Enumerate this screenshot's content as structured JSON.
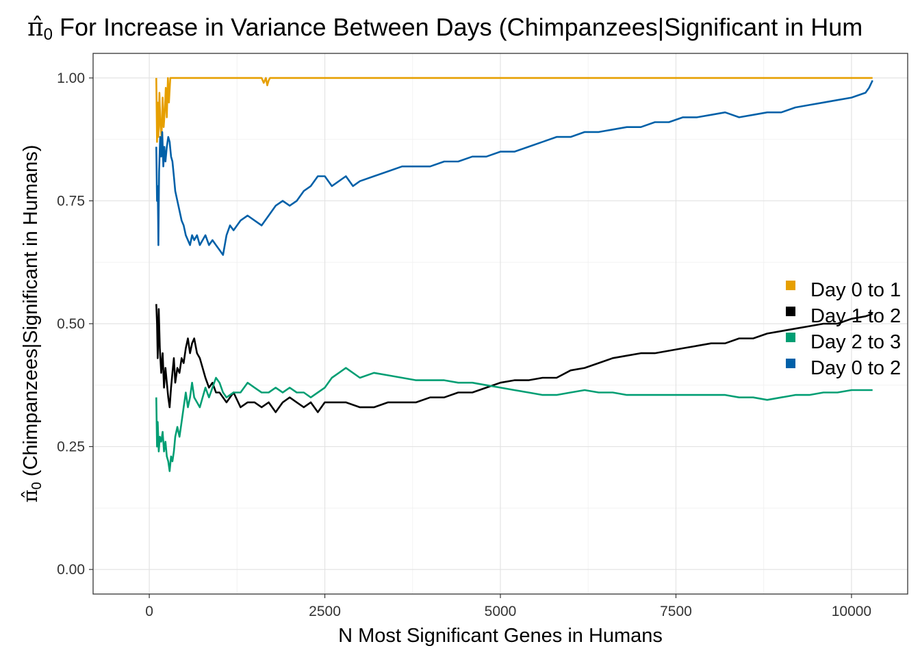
{
  "chart_data": {
    "type": "line",
    "title": "For Increase in Variance Between Days (Chimpanzees|Significant in Hum",
    "title_symbol": "π̂",
    "title_symbol_sub": "0",
    "xlabel": "N Most Significant Genes in Humans",
    "ylabel": "(Chimpanzees|Significant in Humans)",
    "ylabel_symbol": "π̂",
    "ylabel_symbol_sub": "0",
    "xlim": [
      -800,
      10800
    ],
    "ylim": [
      -0.05,
      1.05
    ],
    "x_ticks": [
      0,
      2500,
      5000,
      7500,
      10000
    ],
    "x_tick_labels": [
      "0",
      "2500",
      "5000",
      "7500",
      "10000"
    ],
    "y_ticks": [
      0,
      0.25,
      0.5,
      0.75,
      1.0
    ],
    "y_tick_labels": [
      "0.00",
      "0.25",
      "0.50",
      "0.75",
      "1.00"
    ],
    "grid": true,
    "legend_position": "right",
    "series": [
      {
        "name": "Day 0 to 1",
        "color": "#E69F00",
        "points": [
          [
            100,
            1.0
          ],
          [
            110,
            0.87
          ],
          [
            120,
            0.95
          ],
          [
            130,
            0.88
          ],
          [
            145,
            0.97
          ],
          [
            160,
            0.9
          ],
          [
            175,
            0.88
          ],
          [
            190,
            0.96
          ],
          [
            205,
            0.9
          ],
          [
            220,
            0.93
          ],
          [
            235,
            0.98
          ],
          [
            250,
            0.92
          ],
          [
            265,
            1.0
          ],
          [
            280,
            0.95
          ],
          [
            300,
            1.0
          ],
          [
            400,
            1.0
          ],
          [
            800,
            1.0
          ],
          [
            1200,
            1.0
          ],
          [
            1600,
            1.0
          ],
          [
            1630,
            0.99
          ],
          [
            1660,
            1.0
          ],
          [
            1680,
            0.985
          ],
          [
            1700,
            0.995
          ],
          [
            1720,
            1.0
          ],
          [
            2000,
            1.0
          ],
          [
            3000,
            1.0
          ],
          [
            4000,
            1.0
          ],
          [
            5000,
            1.0
          ],
          [
            6000,
            1.0
          ],
          [
            7000,
            1.0
          ],
          [
            8000,
            1.0
          ],
          [
            9000,
            1.0
          ],
          [
            10000,
            1.0
          ],
          [
            10300,
            1.0
          ]
        ]
      },
      {
        "name": "Day 1 to 2",
        "color": "#000000",
        "points": [
          [
            100,
            0.54
          ],
          [
            110,
            0.5
          ],
          [
            120,
            0.43
          ],
          [
            135,
            0.53
          ],
          [
            150,
            0.45
          ],
          [
            170,
            0.4
          ],
          [
            190,
            0.44
          ],
          [
            210,
            0.37
          ],
          [
            230,
            0.41
          ],
          [
            250,
            0.38
          ],
          [
            270,
            0.35
          ],
          [
            290,
            0.33
          ],
          [
            310,
            0.37
          ],
          [
            330,
            0.4
          ],
          [
            350,
            0.43
          ],
          [
            370,
            0.38
          ],
          [
            400,
            0.41
          ],
          [
            430,
            0.4
          ],
          [
            460,
            0.43
          ],
          [
            490,
            0.42
          ],
          [
            520,
            0.45
          ],
          [
            550,
            0.47
          ],
          [
            580,
            0.44
          ],
          [
            610,
            0.46
          ],
          [
            640,
            0.47
          ],
          [
            680,
            0.44
          ],
          [
            720,
            0.43
          ],
          [
            760,
            0.41
          ],
          [
            800,
            0.39
          ],
          [
            850,
            0.37
          ],
          [
            900,
            0.38
          ],
          [
            950,
            0.36
          ],
          [
            1000,
            0.36
          ],
          [
            1050,
            0.35
          ],
          [
            1100,
            0.34
          ],
          [
            1200,
            0.36
          ],
          [
            1300,
            0.33
          ],
          [
            1400,
            0.34
          ],
          [
            1500,
            0.34
          ],
          [
            1600,
            0.33
          ],
          [
            1700,
            0.34
          ],
          [
            1800,
            0.32
          ],
          [
            1900,
            0.34
          ],
          [
            2000,
            0.35
          ],
          [
            2100,
            0.34
          ],
          [
            2200,
            0.33
          ],
          [
            2300,
            0.34
          ],
          [
            2400,
            0.32
          ],
          [
            2500,
            0.34
          ],
          [
            2600,
            0.34
          ],
          [
            2800,
            0.34
          ],
          [
            3000,
            0.33
          ],
          [
            3200,
            0.33
          ],
          [
            3400,
            0.34
          ],
          [
            3600,
            0.34
          ],
          [
            3800,
            0.34
          ],
          [
            4000,
            0.35
          ],
          [
            4200,
            0.35
          ],
          [
            4400,
            0.36
          ],
          [
            4600,
            0.36
          ],
          [
            4800,
            0.37
          ],
          [
            5000,
            0.38
          ],
          [
            5200,
            0.385
          ],
          [
            5400,
            0.385
          ],
          [
            5600,
            0.39
          ],
          [
            5800,
            0.39
          ],
          [
            6000,
            0.405
          ],
          [
            6200,
            0.41
          ],
          [
            6400,
            0.42
          ],
          [
            6600,
            0.43
          ],
          [
            6800,
            0.435
          ],
          [
            7000,
            0.44
          ],
          [
            7200,
            0.44
          ],
          [
            7400,
            0.445
          ],
          [
            7600,
            0.45
          ],
          [
            7800,
            0.455
          ],
          [
            8000,
            0.46
          ],
          [
            8200,
            0.46
          ],
          [
            8400,
            0.47
          ],
          [
            8600,
            0.47
          ],
          [
            8800,
            0.48
          ],
          [
            9000,
            0.485
          ],
          [
            9200,
            0.49
          ],
          [
            9400,
            0.495
          ],
          [
            9600,
            0.5
          ],
          [
            9800,
            0.5
          ],
          [
            10000,
            0.51
          ],
          [
            10200,
            0.515
          ],
          [
            10300,
            0.52
          ]
        ]
      },
      {
        "name": "Day 2 to 3",
        "color": "#009E73",
        "points": [
          [
            100,
            0.35
          ],
          [
            110,
            0.25
          ],
          [
            120,
            0.3
          ],
          [
            135,
            0.24
          ],
          [
            150,
            0.27
          ],
          [
            170,
            0.26
          ],
          [
            190,
            0.28
          ],
          [
            210,
            0.24
          ],
          [
            230,
            0.26
          ],
          [
            250,
            0.23
          ],
          [
            270,
            0.22
          ],
          [
            290,
            0.2
          ],
          [
            310,
            0.23
          ],
          [
            330,
            0.22
          ],
          [
            350,
            0.24
          ],
          [
            370,
            0.27
          ],
          [
            400,
            0.29
          ],
          [
            430,
            0.27
          ],
          [
            460,
            0.3
          ],
          [
            490,
            0.33
          ],
          [
            520,
            0.36
          ],
          [
            550,
            0.33
          ],
          [
            580,
            0.35
          ],
          [
            610,
            0.38
          ],
          [
            640,
            0.35
          ],
          [
            680,
            0.34
          ],
          [
            720,
            0.33
          ],
          [
            760,
            0.35
          ],
          [
            800,
            0.37
          ],
          [
            850,
            0.35
          ],
          [
            900,
            0.37
          ],
          [
            950,
            0.39
          ],
          [
            1000,
            0.38
          ],
          [
            1050,
            0.36
          ],
          [
            1100,
            0.35
          ],
          [
            1200,
            0.36
          ],
          [
            1300,
            0.36
          ],
          [
            1400,
            0.38
          ],
          [
            1500,
            0.37
          ],
          [
            1600,
            0.36
          ],
          [
            1700,
            0.36
          ],
          [
            1800,
            0.37
          ],
          [
            1900,
            0.36
          ],
          [
            2000,
            0.37
          ],
          [
            2100,
            0.36
          ],
          [
            2200,
            0.36
          ],
          [
            2300,
            0.35
          ],
          [
            2400,
            0.36
          ],
          [
            2500,
            0.37
          ],
          [
            2600,
            0.39
          ],
          [
            2700,
            0.4
          ],
          [
            2800,
            0.41
          ],
          [
            2900,
            0.4
          ],
          [
            3000,
            0.39
          ],
          [
            3200,
            0.4
          ],
          [
            3400,
            0.395
          ],
          [
            3600,
            0.39
          ],
          [
            3800,
            0.385
          ],
          [
            4000,
            0.385
          ],
          [
            4200,
            0.385
          ],
          [
            4400,
            0.38
          ],
          [
            4600,
            0.38
          ],
          [
            4800,
            0.375
          ],
          [
            5000,
            0.37
          ],
          [
            5200,
            0.365
          ],
          [
            5400,
            0.36
          ],
          [
            5600,
            0.355
          ],
          [
            5800,
            0.355
          ],
          [
            6000,
            0.36
          ],
          [
            6200,
            0.365
          ],
          [
            6400,
            0.36
          ],
          [
            6600,
            0.36
          ],
          [
            6800,
            0.355
          ],
          [
            7000,
            0.355
          ],
          [
            7200,
            0.355
          ],
          [
            7400,
            0.355
          ],
          [
            7600,
            0.355
          ],
          [
            7800,
            0.355
          ],
          [
            8000,
            0.355
          ],
          [
            8200,
            0.355
          ],
          [
            8400,
            0.35
          ],
          [
            8600,
            0.35
          ],
          [
            8800,
            0.345
          ],
          [
            9000,
            0.35
          ],
          [
            9200,
            0.355
          ],
          [
            9400,
            0.355
          ],
          [
            9600,
            0.36
          ],
          [
            9800,
            0.36
          ],
          [
            10000,
            0.365
          ],
          [
            10200,
            0.365
          ],
          [
            10300,
            0.365
          ]
        ]
      },
      {
        "name": "Day 0 to 2",
        "color": "#0060A8",
        "points": [
          [
            100,
            0.86
          ],
          [
            110,
            0.75
          ],
          [
            120,
            0.78
          ],
          [
            130,
            0.66
          ],
          [
            140,
            0.81
          ],
          [
            155,
            0.88
          ],
          [
            170,
            0.84
          ],
          [
            185,
            0.89
          ],
          [
            200,
            0.82
          ],
          [
            215,
            0.86
          ],
          [
            230,
            0.83
          ],
          [
            250,
            0.86
          ],
          [
            270,
            0.88
          ],
          [
            290,
            0.87
          ],
          [
            310,
            0.84
          ],
          [
            330,
            0.83
          ],
          [
            350,
            0.8
          ],
          [
            370,
            0.77
          ],
          [
            400,
            0.75
          ],
          [
            430,
            0.73
          ],
          [
            460,
            0.71
          ],
          [
            490,
            0.7
          ],
          [
            520,
            0.68
          ],
          [
            550,
            0.67
          ],
          [
            580,
            0.66
          ],
          [
            610,
            0.68
          ],
          [
            640,
            0.67
          ],
          [
            680,
            0.68
          ],
          [
            720,
            0.66
          ],
          [
            760,
            0.67
          ],
          [
            800,
            0.68
          ],
          [
            850,
            0.66
          ],
          [
            900,
            0.67
          ],
          [
            950,
            0.66
          ],
          [
            1000,
            0.65
          ],
          [
            1050,
            0.64
          ],
          [
            1100,
            0.68
          ],
          [
            1150,
            0.7
          ],
          [
            1200,
            0.69
          ],
          [
            1300,
            0.71
          ],
          [
            1400,
            0.72
          ],
          [
            1500,
            0.71
          ],
          [
            1600,
            0.7
          ],
          [
            1700,
            0.72
          ],
          [
            1800,
            0.74
          ],
          [
            1900,
            0.75
          ],
          [
            2000,
            0.74
          ],
          [
            2100,
            0.75
          ],
          [
            2200,
            0.77
          ],
          [
            2300,
            0.78
          ],
          [
            2400,
            0.8
          ],
          [
            2500,
            0.8
          ],
          [
            2600,
            0.78
          ],
          [
            2700,
            0.79
          ],
          [
            2800,
            0.8
          ],
          [
            2900,
            0.78
          ],
          [
            3000,
            0.79
          ],
          [
            3200,
            0.8
          ],
          [
            3400,
            0.81
          ],
          [
            3600,
            0.82
          ],
          [
            3800,
            0.82
          ],
          [
            4000,
            0.82
          ],
          [
            4200,
            0.83
          ],
          [
            4400,
            0.83
          ],
          [
            4600,
            0.84
          ],
          [
            4800,
            0.84
          ],
          [
            5000,
            0.85
          ],
          [
            5200,
            0.85
          ],
          [
            5400,
            0.86
          ],
          [
            5600,
            0.87
          ],
          [
            5800,
            0.88
          ],
          [
            6000,
            0.88
          ],
          [
            6200,
            0.89
          ],
          [
            6400,
            0.89
          ],
          [
            6600,
            0.895
          ],
          [
            6800,
            0.9
          ],
          [
            7000,
            0.9
          ],
          [
            7200,
            0.91
          ],
          [
            7400,
            0.91
          ],
          [
            7600,
            0.92
          ],
          [
            7800,
            0.92
          ],
          [
            8000,
            0.925
          ],
          [
            8200,
            0.93
          ],
          [
            8400,
            0.92
          ],
          [
            8600,
            0.925
          ],
          [
            8800,
            0.93
          ],
          [
            9000,
            0.93
          ],
          [
            9200,
            0.94
          ],
          [
            9400,
            0.945
          ],
          [
            9600,
            0.95
          ],
          [
            9800,
            0.955
          ],
          [
            10000,
            0.96
          ],
          [
            10200,
            0.97
          ],
          [
            10250,
            0.98
          ],
          [
            10300,
            0.995
          ]
        ]
      }
    ]
  }
}
